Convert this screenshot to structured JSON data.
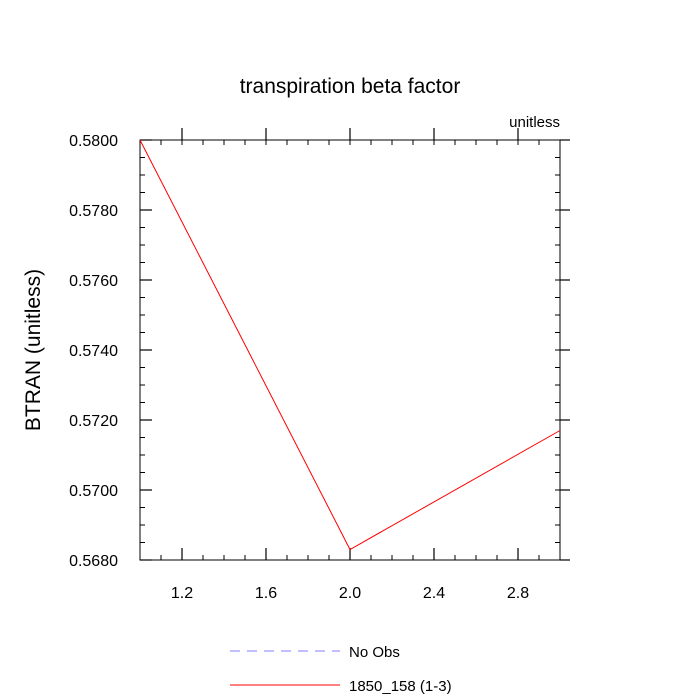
{
  "chart_data": {
    "type": "line",
    "title": "transpiration beta factor",
    "subtitle": "unitless",
    "xlabel": "",
    "ylabel": "BTRAN  (unitless)",
    "xlim": [
      1.0,
      3.0
    ],
    "ylim": [
      0.568,
      0.58
    ],
    "xticks": [
      1.2,
      1.6,
      2.0,
      2.4,
      2.8
    ],
    "xtick_labels": [
      "1.2",
      "1.6",
      "2.0",
      "2.4",
      "2.8"
    ],
    "yticks": [
      0.568,
      0.57,
      0.572,
      0.574,
      0.576,
      0.578,
      0.58
    ],
    "ytick_labels": [
      "0.5680",
      "0.5700",
      "0.5720",
      "0.5740",
      "0.5760",
      "0.5780",
      "0.5800"
    ],
    "grid": false,
    "legend_position": "bottom-center",
    "series": [
      {
        "name": "No Obs",
        "color": "#8080ff",
        "dash": "dashed",
        "x": [],
        "y": []
      },
      {
        "name": "1850_158 (1-3)",
        "color": "#ff0000",
        "dash": "solid",
        "x": [
          1.0,
          2.0,
          3.0
        ],
        "y": [
          0.58,
          0.5683,
          0.5717
        ]
      }
    ]
  }
}
